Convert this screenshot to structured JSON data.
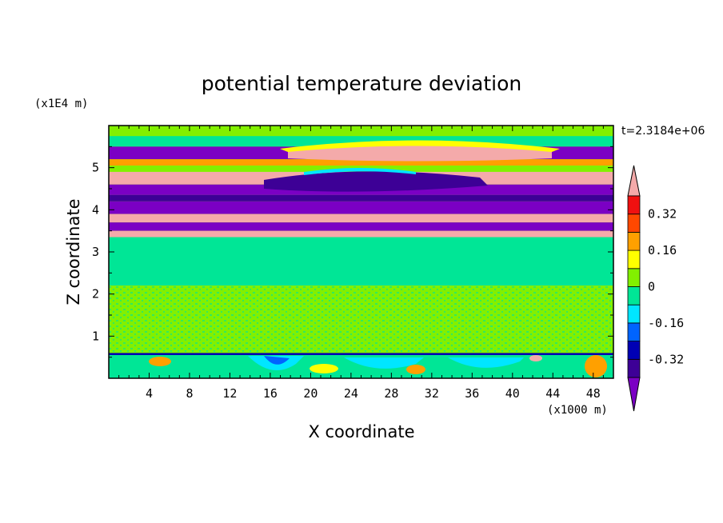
{
  "chart_data": {
    "type": "heatmap",
    "title": "potential temperature deviation",
    "xlabel": "X coordinate",
    "ylabel": "Z coordinate",
    "x_unit": "(x1000 m)",
    "y_unit": "(x1E4 m)",
    "time_label": "t=2.3184e+06",
    "xlim": [
      0,
      50
    ],
    "ylim": [
      0,
      6
    ],
    "x_ticks": [
      4,
      8,
      12,
      16,
      20,
      24,
      28,
      32,
      36,
      40,
      44,
      48
    ],
    "y_ticks": [
      1,
      2,
      3,
      4,
      5
    ],
    "colorbar": {
      "levels": [
        -0.4,
        -0.32,
        -0.24,
        -0.16,
        -0.08,
        0,
        0.08,
        0.16,
        0.24,
        0.32,
        0.4
      ],
      "labels": [
        "0.32",
        "0.16",
        "0",
        "-0.16",
        "-0.32"
      ],
      "label_values": [
        0.32,
        0.16,
        0,
        -0.16,
        -0.32
      ],
      "colors": [
        "#7b00c4",
        "#3d0096",
        "#0000b4",
        "#0064ff",
        "#00e6ff",
        "#00e696",
        "#82f000",
        "#ffff00",
        "#ffa000",
        "#ff4800",
        "#f0e0"
      ],
      "under_color": "#7b00c4",
      "over_color": "#f4aaaa"
    },
    "bands": [
      {
        "z0": 5.75,
        "z1": 6.0,
        "color": "#82f000"
      },
      {
        "z0": 5.5,
        "z1": 5.75,
        "color": "#00e696"
      },
      {
        "z0": 5.2,
        "z1": 5.5,
        "color": "#7b00c4"
      },
      {
        "z0": 5.05,
        "z1": 5.2,
        "color": "#ffa000"
      },
      {
        "z0": 4.9,
        "z1": 5.05,
        "color": "#82f000"
      },
      {
        "z0": 4.6,
        "z1": 4.9,
        "color": "#f4aaaa"
      },
      {
        "z0": 4.35,
        "z1": 4.6,
        "color": "#7b00c4"
      },
      {
        "z0": 4.2,
        "z1": 4.35,
        "color": "#3d0096"
      },
      {
        "z0": 3.9,
        "z1": 4.2,
        "color": "#7b00c4"
      },
      {
        "z0": 3.7,
        "z1": 3.9,
        "color": "#f4aaaa"
      },
      {
        "z0": 3.5,
        "z1": 3.7,
        "color": "#7b00c4"
      },
      {
        "z0": 3.35,
        "z1": 3.5,
        "color": "#f4aaaa"
      },
      {
        "z0": 2.2,
        "z1": 3.35,
        "color": "#00e696"
      },
      {
        "z0": 0.6,
        "z1": 2.2,
        "color": "#82f000"
      },
      {
        "z0": 0.55,
        "z1": 0.6,
        "color": "#0000b4"
      },
      {
        "z0": 0.0,
        "z1": 0.55,
        "color": "#00e696"
      }
    ]
  }
}
